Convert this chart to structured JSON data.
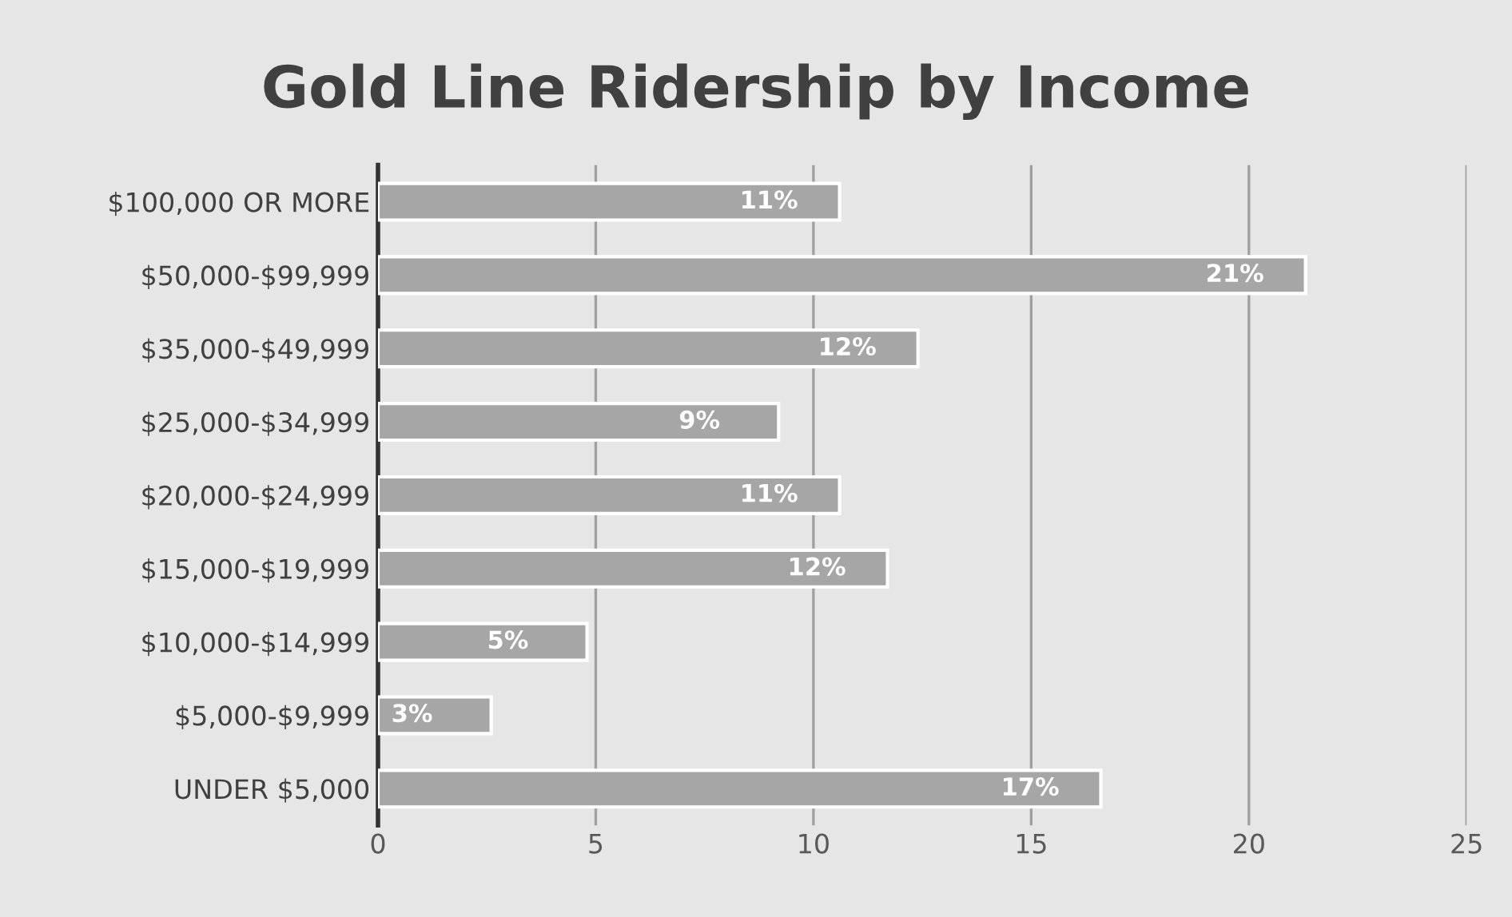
{
  "chart_data": {
    "type": "bar",
    "orientation": "horizontal",
    "title": "Gold Line Ridership by Income",
    "categories": [
      "$100,000 OR MORE",
      "$50,000-$99,999",
      "$35,000-$49,999",
      "$25,000-$34,999",
      "$20,000-$24,999",
      "$15,000-$19,999",
      "$10,000-$14,999",
      "$5,000-$9,999",
      "UNDER $5,000"
    ],
    "values": [
      10.6,
      21.3,
      12.4,
      9.2,
      10.6,
      11.7,
      4.8,
      2.6,
      16.6
    ],
    "value_labels": [
      "11%",
      "21%",
      "12%",
      "9%",
      "11%",
      "12%",
      "5%",
      "3%",
      "17%"
    ],
    "color": "#a6a6a6",
    "xlim": [
      0,
      25
    ],
    "xticks": [
      0,
      5,
      10,
      15,
      20,
      25
    ],
    "grid": "x"
  }
}
